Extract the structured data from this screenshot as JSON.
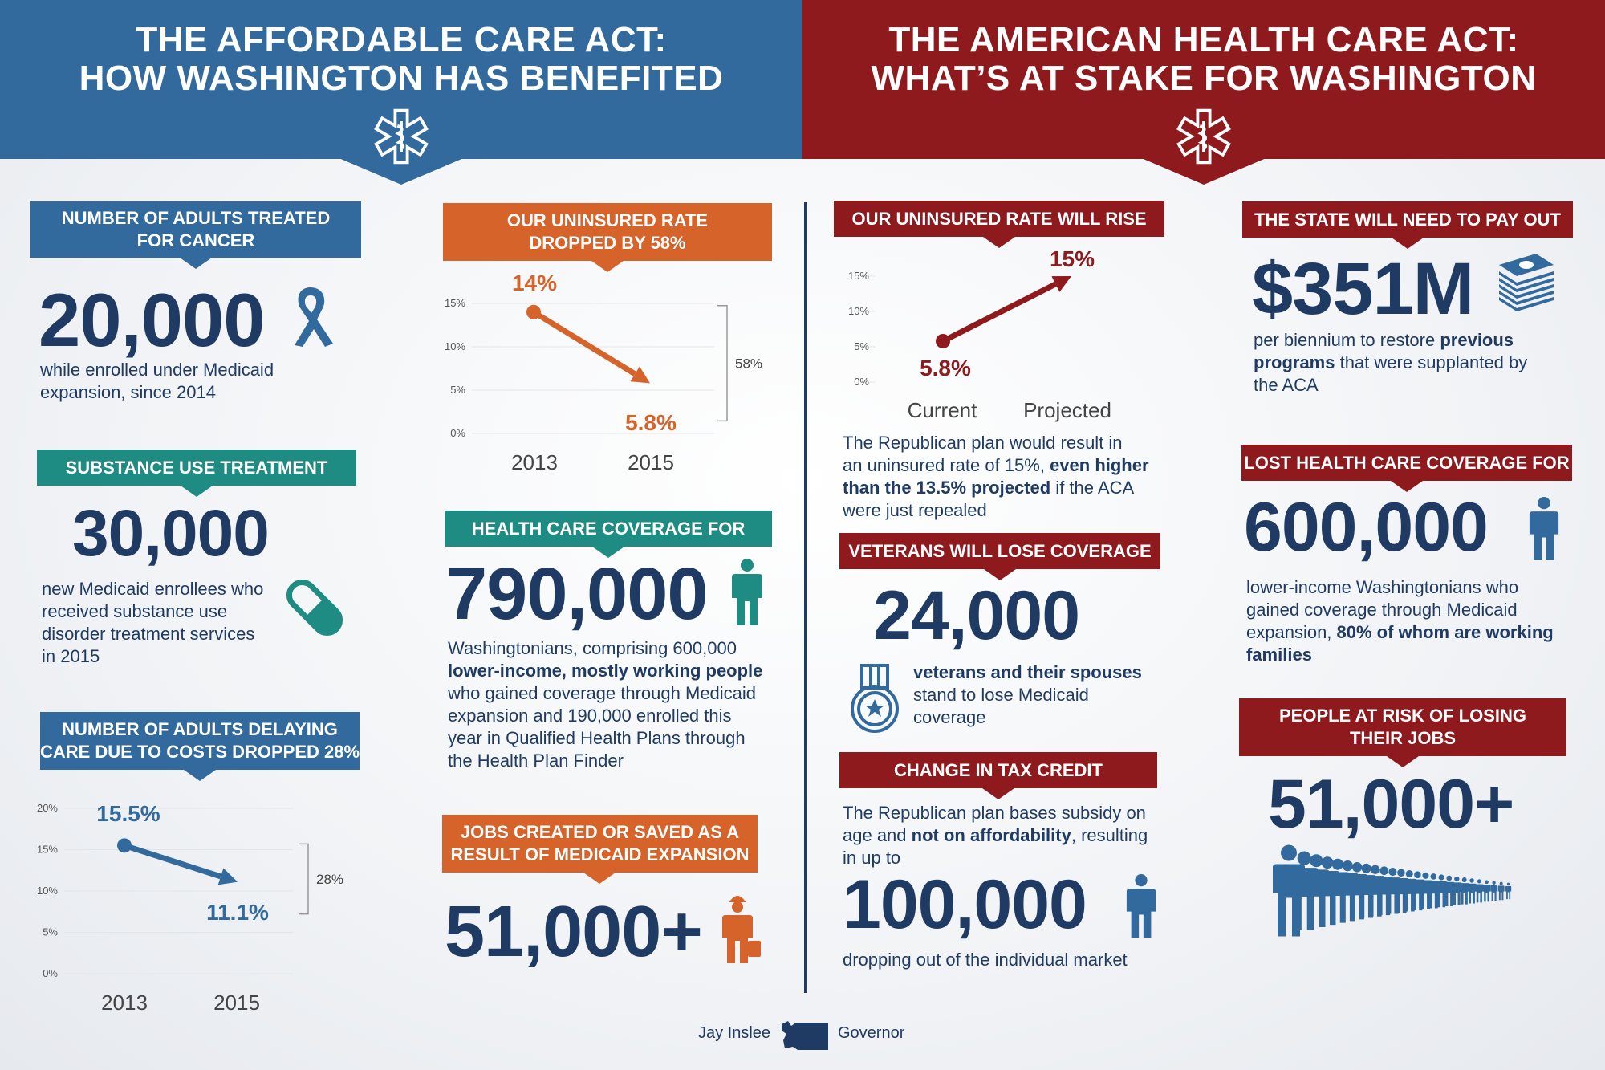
{
  "header_left": {
    "line1": "THE AFFORDABLE CARE ACT:",
    "line2": "HOW WASHINGTON HAS BENEFITED",
    "color": "#336a9e"
  },
  "header_right": {
    "line1": "THE AMERICAN HEALTH CARE ACT:",
    "line2": "WHAT’S AT STAKE FOR WASHINGTON",
    "color": "#8e1a1d"
  },
  "cancer": {
    "label1": "NUMBER OF ADULTS TREATED",
    "label2": "FOR CANCER",
    "number": "20,000",
    "desc1": "while enrolled under Medicaid",
    "desc2": "expansion, since 2014",
    "icon": "ribbon-icon"
  },
  "substance": {
    "label": "SUBSTANCE USE TREATMENT",
    "number": "30,000",
    "desc1": "new Medicaid enrollees who",
    "desc2": "received substance use",
    "desc3": "disorder treatment services",
    "desc4": "in 2015",
    "icon": "pill-icon"
  },
  "delaying": {
    "label1": "NUMBER OF ADULTS DELAYING",
    "label2": "CARE DUE TO COSTS DROPPED 28%"
  },
  "chart_delaying": {
    "type": "line",
    "x": [
      "2013",
      "2015"
    ],
    "y": [
      15.5,
      11.1
    ],
    "point_labels": [
      "15.5%",
      "11.1%"
    ],
    "yticks": [
      "0%",
      "5%",
      "10%",
      "15%",
      "20%"
    ],
    "ylim": [
      0,
      20
    ],
    "bracket_label": "28%",
    "color": "#336a9e"
  },
  "uninsured_dropped": {
    "label1": "OUR UNINSURED RATE",
    "label2": "DROPPED BY 58%"
  },
  "chart_uninsured": {
    "type": "line",
    "x": [
      "2013",
      "2015"
    ],
    "y": [
      14,
      5.8
    ],
    "point_labels": [
      "14%",
      "5.8%"
    ],
    "yticks": [
      "0%",
      "5%",
      "10%",
      "15%"
    ],
    "ylim": [
      0,
      15
    ],
    "bracket_label": "58%",
    "color": "#d5632a"
  },
  "coverage": {
    "label": "HEALTH CARE COVERAGE FOR",
    "number": "790,000",
    "desc1": "Washingtonians, comprising 600,000",
    "desc2_bold": "lower-income, mostly working people",
    "desc3": "who gained coverage through Medicaid",
    "desc4": "expansion and 190,000 enrolled this",
    "desc5": "year in Qualified Health Plans through",
    "desc6": "the Health Plan Finder",
    "icon": "person-icon"
  },
  "jobs": {
    "label1": "JOBS CREATED OR SAVED AS A",
    "label2": "RESULT OF MEDICAID EXPANSION",
    "number": "51,000+",
    "icon": "worker-icon"
  },
  "rate_rise": {
    "label": "OUR UNINSURED RATE WILL RISE",
    "desc1": "The Republican plan would result in",
    "desc2a": "an uninsured rate of 15%, ",
    "desc2b": "even higher",
    "desc3b": "than the 13.5% projected",
    "desc3a": " if the ACA",
    "desc4": "were just repealed"
  },
  "chart_rise": {
    "type": "line",
    "x": [
      "Current",
      "Projected"
    ],
    "y": [
      5.8,
      15
    ],
    "point_labels": [
      "5.8%",
      "15%"
    ],
    "yticks": [
      "0%",
      "5%",
      "10%",
      "15%"
    ],
    "ylim": [
      0,
      15
    ],
    "color": "#8e1a1d"
  },
  "veterans": {
    "label": "VETERANS WILL LOSE COVERAGE",
    "number": "24,000",
    "desc1_bold": "veterans and their spouses",
    "desc2": "stand to lose Medicaid",
    "desc3": "coverage",
    "icon": "medal-icon"
  },
  "taxcredit": {
    "label": "CHANGE IN TAX CREDIT",
    "desc1": "The Republican plan bases subsidy on",
    "desc2a": "age and ",
    "desc2b": "not on affordability",
    "desc2c": ", resulting",
    "desc3": "in up to",
    "number": "100,000",
    "desc4": "dropping out of the individual market",
    "icon": "person-icon"
  },
  "payout": {
    "label": "THE STATE WILL NEED TO PAY OUT",
    "number": "$351M",
    "desc1a": "per biennium to restore ",
    "desc1b": "previous",
    "desc2b": "programs",
    "desc2a": " that were supplanted by",
    "desc3": "the ACA",
    "icon": "money-stack-icon"
  },
  "lost": {
    "label": "LOST HEALTH CARE COVERAGE FOR",
    "number": "600,000",
    "desc1": "lower-income Washingtonians who",
    "desc2": "gained coverage through Medicaid",
    "desc3a": "expansion, ",
    "desc3b": "80% of whom are working",
    "desc4b": "families",
    "icon": "person-icon"
  },
  "risk": {
    "label1": "PEOPLE AT RISK OF LOSING",
    "label2": "THEIR JOBS",
    "number": "51,000+",
    "icon": "crowd-icon"
  },
  "footer": {
    "left": "Jay Inslee",
    "right": "Governor",
    "icon": "washington-state-icon"
  }
}
